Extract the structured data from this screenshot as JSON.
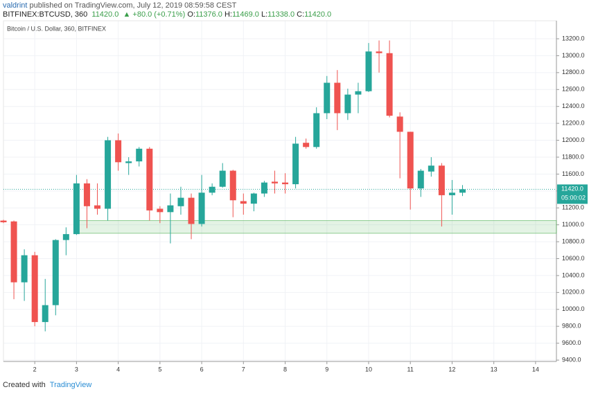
{
  "header": {
    "author": "valdrint",
    "published": "published on TradingView.com, July 12, 2019 08:59:58 CEST",
    "symbol": "BITFINEX:BTCUSD, 360",
    "last": "11420.0",
    "change": "▲ +80.0 (+0.71%)",
    "ohlc": [
      {
        "label": "O:",
        "value": "11376.0"
      },
      {
        "label": "H:",
        "value": "11469.0"
      },
      {
        "label": "L:",
        "value": "11338.0"
      },
      {
        "label": "C:",
        "value": "11420.0"
      }
    ]
  },
  "footer": {
    "text": "Created with",
    "brand": "TradingView"
  },
  "chart_data": {
    "type": "candlestick",
    "title": "Bitcoin / U.S. Dollar, 360, BITFINEX",
    "x": [
      1.25,
      1.5,
      1.75,
      2,
      2.25,
      2.5,
      2.75,
      3,
      3.25,
      3.5,
      3.75,
      4,
      4.25,
      4.5,
      4.75,
      5,
      5.25,
      5.5,
      5.75,
      6,
      6.25,
      6.5,
      6.75,
      7,
      7.25,
      7.5,
      7.75,
      8,
      8.25,
      8.5,
      8.75,
      9,
      9.25,
      9.5,
      9.75,
      10,
      10.25,
      10.5,
      10.75,
      11,
      11.25,
      11.5,
      11.75,
      12,
      12.25
    ],
    "open": [
      11050,
      11040,
      10320,
      10640,
      9850,
      10050,
      10820,
      10890,
      11490,
      11230,
      11190,
      12000,
      11730,
      11750,
      11900,
      11190,
      11150,
      11220,
      11320,
      11010,
      11380,
      11450,
      11640,
      11280,
      11250,
      11370,
      11510,
      11500,
      11480,
      11970,
      11920,
      12320,
      12680,
      12320,
      12540,
      12580,
      13050,
      13030,
      12280,
      12100,
      11430,
      11630,
      11700,
      11350,
      11380
    ],
    "high": [
      11060,
      11050,
      10710,
      10680,
      10360,
      10830,
      10970,
      11590,
      11540,
      11490,
      12040,
      12080,
      11800,
      11920,
      11920,
      11220,
      11370,
      11450,
      11370,
      11590,
      11490,
      11730,
      11650,
      11370,
      11380,
      11520,
      11640,
      11610,
      12040,
      12020,
      12390,
      12760,
      12830,
      12610,
      12680,
      13150,
      13180,
      13180,
      12330,
      12100,
      11660,
      11800,
      11730,
      11530,
      11470
    ],
    "low": [
      11020,
      10120,
      10100,
      9800,
      9740,
      9930,
      10640,
      10880,
      10960,
      11120,
      11050,
      11640,
      11590,
      11690,
      11050,
      11020,
      10780,
      11120,
      10830,
      10980,
      11350,
      11440,
      11090,
      11120,
      11160,
      11330,
      11370,
      11370,
      11430,
      11900,
      11900,
      12250,
      12120,
      12240,
      12320,
      12570,
      12800,
      12270,
      11550,
      11180,
      11330,
      11570,
      10980,
      11120,
      11340
    ],
    "close": [
      11030,
      10320,
      10640,
      9850,
      10050,
      10820,
      10890,
      11490,
      11220,
      11190,
      12000,
      11740,
      11750,
      11900,
      11170,
      11150,
      11230,
      11320,
      11010,
      11380,
      11450,
      11640,
      11290,
      11250,
      11370,
      11500,
      11490,
      11480,
      11960,
      11920,
      12320,
      12680,
      12320,
      12540,
      12580,
      13050,
      13030,
      12290,
      12100,
      11430,
      11640,
      11700,
      11350,
      11380,
      11420
    ],
    "up_color": "#26a69a",
    "down_color": "#ef5350",
    "xlim": [
      1.25,
      14.5
    ],
    "ylim": [
      9384,
      13413
    ],
    "xticks": [
      2,
      3,
      4,
      5,
      6,
      7,
      8,
      9,
      10,
      11,
      12,
      13,
      14
    ],
    "yticks": [
      {
        "value": 9400,
        "label": "9400.0"
      },
      {
        "value": 9600,
        "label": "9600.0"
      },
      {
        "value": 9800,
        "label": "9800.0"
      },
      {
        "value": 10000,
        "label": "10000.0"
      },
      {
        "value": 10200,
        "label": "10200.0"
      },
      {
        "value": 10400,
        "label": "10400.0"
      },
      {
        "value": 10600,
        "label": "10600.0"
      },
      {
        "value": 10800,
        "label": "10800.0"
      },
      {
        "value": 11000,
        "label": "11000.0"
      },
      {
        "value": 11200,
        "label": "11200.0"
      },
      {
        "value": 11400,
        "label": "11400.0"
      },
      {
        "value": 11600,
        "label": "11600.0"
      },
      {
        "value": 11800,
        "label": "11800.0"
      },
      {
        "value": 12000,
        "label": "12000.0"
      },
      {
        "value": 12200,
        "label": "12200.0"
      },
      {
        "value": 12400,
        "label": "12400.0"
      },
      {
        "value": 12600,
        "label": "12600.0"
      },
      {
        "value": 12800,
        "label": "12800.0"
      },
      {
        "value": 13000,
        "label": "13000.0"
      },
      {
        "value": 13200,
        "label": "13200.0"
      }
    ],
    "grid": true,
    "zone": [
      10900,
      11050
    ],
    "zone_color": "#4caf50",
    "last_price": {
      "value": 11420,
      "label": "11420.0"
    },
    "countdown": "05:00:02"
  }
}
